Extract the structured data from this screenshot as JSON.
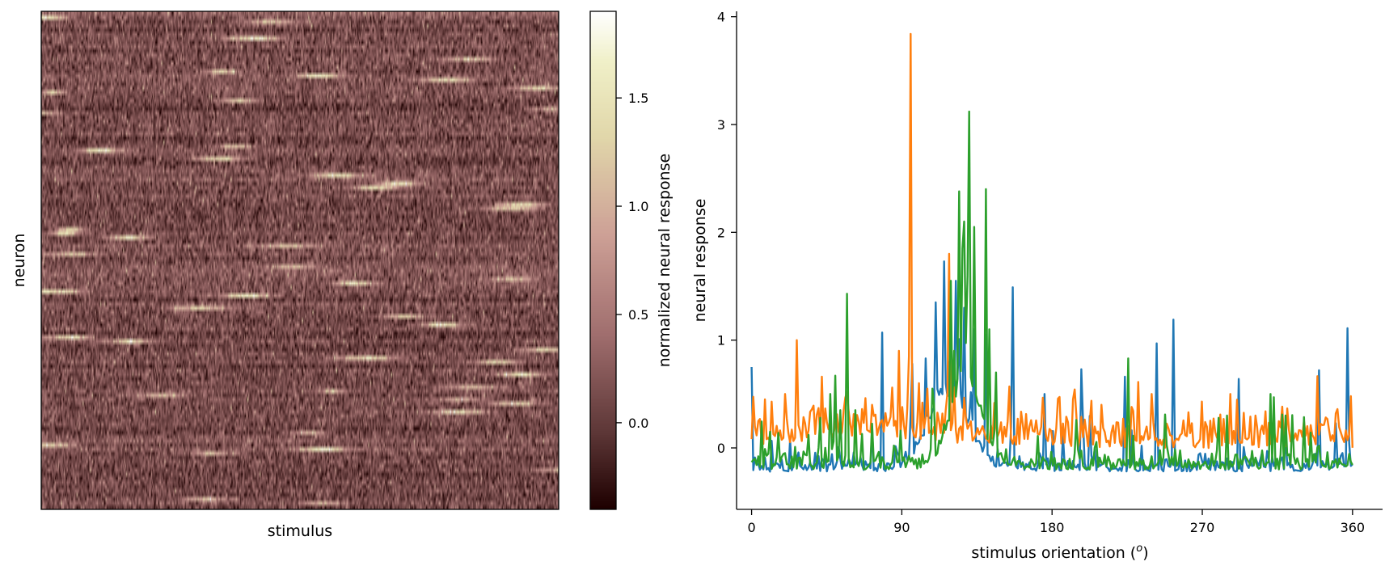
{
  "chart_data": [
    {
      "type": "heatmap",
      "xlabel": "stimulus",
      "ylabel": "neuron",
      "colormap": "pink",
      "n_neurons": 120,
      "n_stimuli": 500,
      "clim": [
        -0.4,
        1.9
      ],
      "colorbar": {
        "label": "normalized neural response",
        "ticks": [
          0.0,
          0.5,
          1.0,
          1.5
        ],
        "tick_labels": [
          "0.0",
          "0.5",
          "1.0",
          "1.5"
        ]
      }
    },
    {
      "type": "line",
      "xlabel": "stimulus orientation (ᴼ)",
      "xlabel_text": "stimulus orientation (",
      "xlabel_sup": "o",
      "xlabel_end": ")",
      "ylabel": "neural response",
      "xlim": [
        -9,
        378
      ],
      "ylim": [
        -0.57,
        4.05
      ],
      "xticks": [
        0,
        90,
        180,
        270,
        360
      ],
      "xtick_labels": [
        "0",
        "90",
        "180",
        "270",
        "360"
      ],
      "yticks": [
        0,
        1,
        2,
        3,
        4
      ],
      "ytick_labels": [
        "0",
        "1",
        "2",
        "3",
        "4"
      ],
      "x_range": [
        0,
        360
      ],
      "n_points": 360,
      "series": [
        {
          "color": "#1f77b4",
          "baseline": -0.22,
          "noise": 0.05,
          "tuning_center": 118,
          "tuning_width": 12,
          "tuning_amp": 0.7,
          "peaks": [
            [
              0,
              0.75
            ],
            [
              78,
              1.07
            ],
            [
              96,
              0.78
            ],
            [
              104,
              0.83
            ],
            [
              110,
              1.35
            ],
            [
              115,
              1.73
            ],
            [
              118,
              0.8
            ],
            [
              122,
              1.55
            ],
            [
              127,
              1.3
            ],
            [
              133,
              1.1
            ],
            [
              140,
              1.05
            ],
            [
              156,
              1.49
            ],
            [
              175,
              0.5
            ],
            [
              198,
              0.73
            ],
            [
              224,
              0.66
            ],
            [
              243,
              0.97
            ],
            [
              253,
              1.19
            ],
            [
              292,
              0.64
            ],
            [
              340,
              0.72
            ],
            [
              357,
              1.11
            ]
          ]
        },
        {
          "color": "#ff7f0e",
          "baseline": 0.0,
          "noise": 0.1,
          "tuning_center": 70,
          "tuning_width": 40,
          "tuning_amp": 0.1,
          "peaks": [
            [
              4,
              0.25
            ],
            [
              8,
              0.45
            ],
            [
              20,
              0.5
            ],
            [
              27,
              1.0
            ],
            [
              40,
              0.37
            ],
            [
              42,
              0.66
            ],
            [
              55,
              0.35
            ],
            [
              72,
              0.4
            ],
            [
              84,
              0.56
            ],
            [
              88,
              0.9
            ],
            [
              94,
              0.85
            ],
            [
              95,
              3.84
            ],
            [
              100,
              0.6
            ],
            [
              105,
              0.55
            ],
            [
              118,
              1.8
            ],
            [
              128,
              0.28
            ],
            [
              193,
              0.45
            ],
            [
              210,
              0.4
            ],
            [
              228,
              0.38
            ],
            [
              240,
              0.5
            ],
            [
              262,
              0.33
            ],
            [
              270,
              0.43
            ],
            [
              287,
              0.5
            ],
            [
              302,
              0.3
            ],
            [
              331,
              0.25
            ],
            [
              359,
              0.48
            ]
          ]
        },
        {
          "color": "#2ca02c",
          "baseline": -0.2,
          "noise": 0.05,
          "tuning_center": 128,
          "tuning_width": 9,
          "tuning_amp": 0.8,
          "peaks": [
            [
              47,
              0.5
            ],
            [
              50,
              0.67
            ],
            [
              53,
              0.35
            ],
            [
              57,
              1.43
            ],
            [
              62,
              0.35
            ],
            [
              108,
              0.55
            ],
            [
              119,
              1.55
            ],
            [
              121,
              0.9
            ],
            [
              124,
              2.38
            ],
            [
              126,
              1.85
            ],
            [
              127,
              2.1
            ],
            [
              129,
              1.6
            ],
            [
              130,
              3.12
            ],
            [
              133,
              2.05
            ],
            [
              140,
              2.4
            ],
            [
              142,
              1.1
            ],
            [
              146,
              0.7
            ],
            [
              226,
              0.83
            ],
            [
              248,
              0.31
            ],
            [
              285,
              0.3
            ],
            [
              311,
              0.5
            ],
            [
              313,
              0.47
            ],
            [
              320,
              0.3
            ]
          ]
        }
      ]
    }
  ]
}
